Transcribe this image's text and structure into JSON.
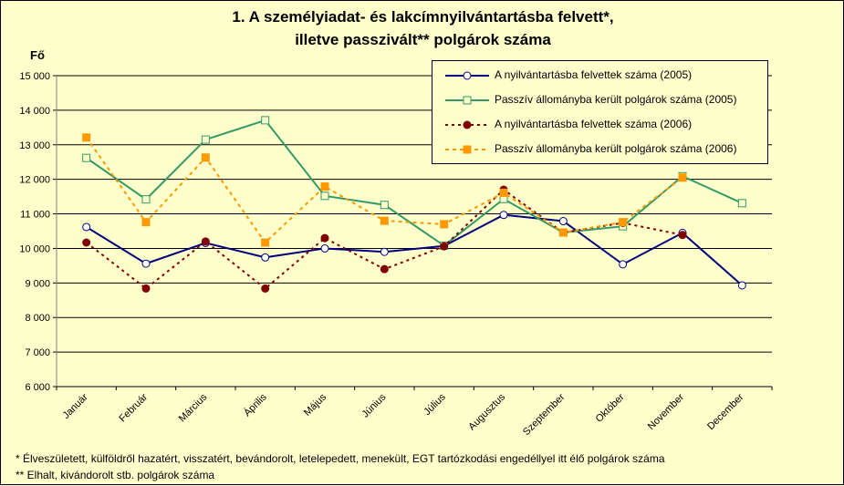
{
  "title_line1": "1. A személyiadat- és lakcímnyilvántartásba felvett*,",
  "title_line2": "illetve passzivált** polgárok száma",
  "footnote1": "* Élveszületett, külföldről hazatért, visszatért, bevándorolt, letelepedett, menekült, EGT tartózkodási engedéllyel itt élő  polgárok száma",
  "footnote2": "** Elhalt, kivándorolt stb. polgárok száma",
  "colors": {
    "background": "#FFFFCC",
    "navy": "#000080",
    "green": "#339966",
    "maroon": "#800000",
    "orange": "#FF9900"
  },
  "chart_data": {
    "type": "line",
    "ylabel": "Fő",
    "xlabel": "",
    "ylim": [
      6000,
      15000
    ],
    "yticks": [
      6000,
      7000,
      8000,
      9000,
      10000,
      11000,
      12000,
      13000,
      14000,
      15000
    ],
    "ytick_labels": [
      "6 000",
      "7 000",
      "8 000",
      "9 000",
      "10 000",
      "11 000",
      "12 000",
      "13 000",
      "14 000",
      "15 000"
    ],
    "grid": "horizontal",
    "legend_position": "top-right",
    "categories": [
      "Január",
      "Február",
      "Március",
      "Április",
      "Május",
      "Június",
      "Július",
      "Augusztus",
      "Szeptember",
      "Október",
      "November",
      "December"
    ],
    "series": [
      {
        "name": "A nyilvántartásba felvettek száma (2005)",
        "color": "#000080",
        "line": "solid",
        "marker": "circle-open",
        "values": [
          10620,
          9560,
          10160,
          9740,
          10000,
          9900,
          10070,
          10970,
          10790,
          9540,
          10450,
          8930
        ]
      },
      {
        "name": "Passzív állományba került polgárok száma (2005)",
        "color": "#339966",
        "line": "solid",
        "marker": "square-open",
        "values": [
          12620,
          11420,
          13150,
          13710,
          11520,
          11260,
          10080,
          11430,
          10460,
          10640,
          12090,
          11310
        ]
      },
      {
        "name": "A nyilvántartásba felvettek száma (2006)",
        "color": "#800000",
        "line": "dotted",
        "marker": "circle-filled",
        "values": [
          10170,
          8840,
          10200,
          8840,
          10300,
          9400,
          10060,
          11700,
          10460,
          10740,
          10390,
          null
        ]
      },
      {
        "name": "Passzív állományba került polgárok száma (2006)",
        "color": "#FF9900",
        "line": "dashed",
        "marker": "square-filled",
        "values": [
          13210,
          10760,
          12630,
          10170,
          11790,
          10800,
          10700,
          11610,
          10460,
          10760,
          12050,
          null
        ]
      }
    ]
  }
}
